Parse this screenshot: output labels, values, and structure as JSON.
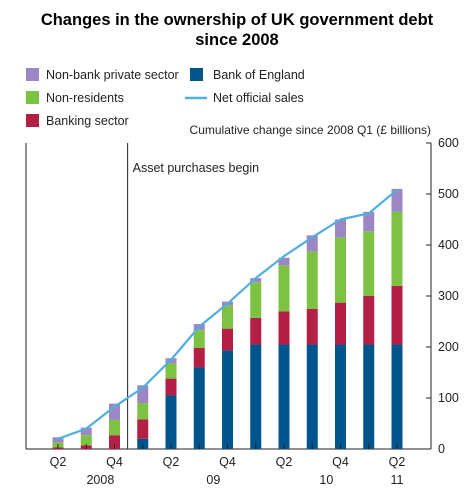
{
  "chart_data": {
    "type": "bar",
    "title_line1": "Changes in the ownership of UK government debt",
    "title_line2": "since 2008",
    "unit_label": "Cumulative change since 2008 Q1 (£ billions)",
    "annotation": "Asset purchases begin",
    "ylim": [
      0,
      600
    ],
    "y_ticks": [
      "0",
      "100",
      "200",
      "300",
      "400",
      "500",
      "600"
    ],
    "x_tick_labels": [
      {
        "label": "Q2",
        "index": 0
      },
      {
        "label": "Q4",
        "index": 2
      },
      {
        "label": "Q2",
        "index": 4
      },
      {
        "label": "Q4",
        "index": 6
      },
      {
        "label": "Q2",
        "index": 8
      },
      {
        "label": "Q4",
        "index": 10
      },
      {
        "label": "Q2",
        "index": 12
      }
    ],
    "year_labels": [
      {
        "label": "2008",
        "index": 1.5
      },
      {
        "label": "09",
        "index": 5.5
      },
      {
        "label": "10",
        "index": 9.5
      },
      {
        "label": "11",
        "index": 12
      }
    ],
    "annotation_after_index": 2,
    "series": [
      {
        "name": "Bank of England",
        "color": "#00558c",
        "values": [
          0,
          0,
          0,
          20,
          105,
          160,
          193,
          205,
          205,
          205,
          205,
          205,
          205
        ]
      },
      {
        "name": "Banking sector",
        "color": "#b41f45",
        "values": [
          3,
          7,
          27,
          38,
          33,
          38,
          43,
          52,
          65,
          70,
          82,
          95,
          115
        ]
      },
      {
        "name": "Non-residents",
        "color": "#7dc242",
        "values": [
          10,
          20,
          30,
          32,
          30,
          35,
          45,
          70,
          90,
          112,
          128,
          127,
          145
        ]
      },
      {
        "name": "Non-bank private sector",
        "color": "#9d86c4",
        "values": [
          10,
          15,
          32,
          35,
          10,
          12,
          8,
          8,
          15,
          32,
          35,
          38,
          45
        ]
      }
    ],
    "line_series": {
      "name": "Net official sales",
      "color": "#4fb0df",
      "values": [
        20,
        40,
        83,
        120,
        175,
        240,
        285,
        335,
        378,
        415,
        450,
        462,
        508
      ]
    },
    "legend_left": [
      "Non-bank private sector",
      "Non-residents",
      "Banking sector"
    ],
    "legend_right": [
      "Bank of England",
      "Net official sales"
    ]
  }
}
